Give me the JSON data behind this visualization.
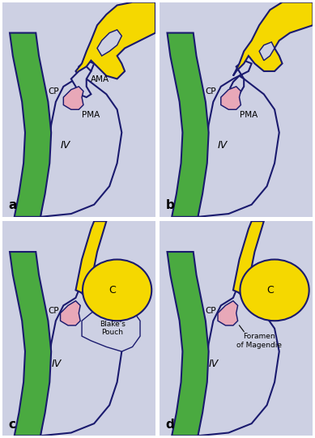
{
  "bg_color": "#ffffff",
  "panel_bg": "#cdd0e3",
  "outline_color": "#1a1a6e",
  "green_color": "#4aaa40",
  "green_dark": "#2a7a28",
  "yellow_color": "#f5d800",
  "pink_color": "#e8a8b8",
  "white_color": "#ffffff",
  "panel_labels": [
    "a",
    "b",
    "c",
    "d"
  ],
  "lw": 1.5
}
